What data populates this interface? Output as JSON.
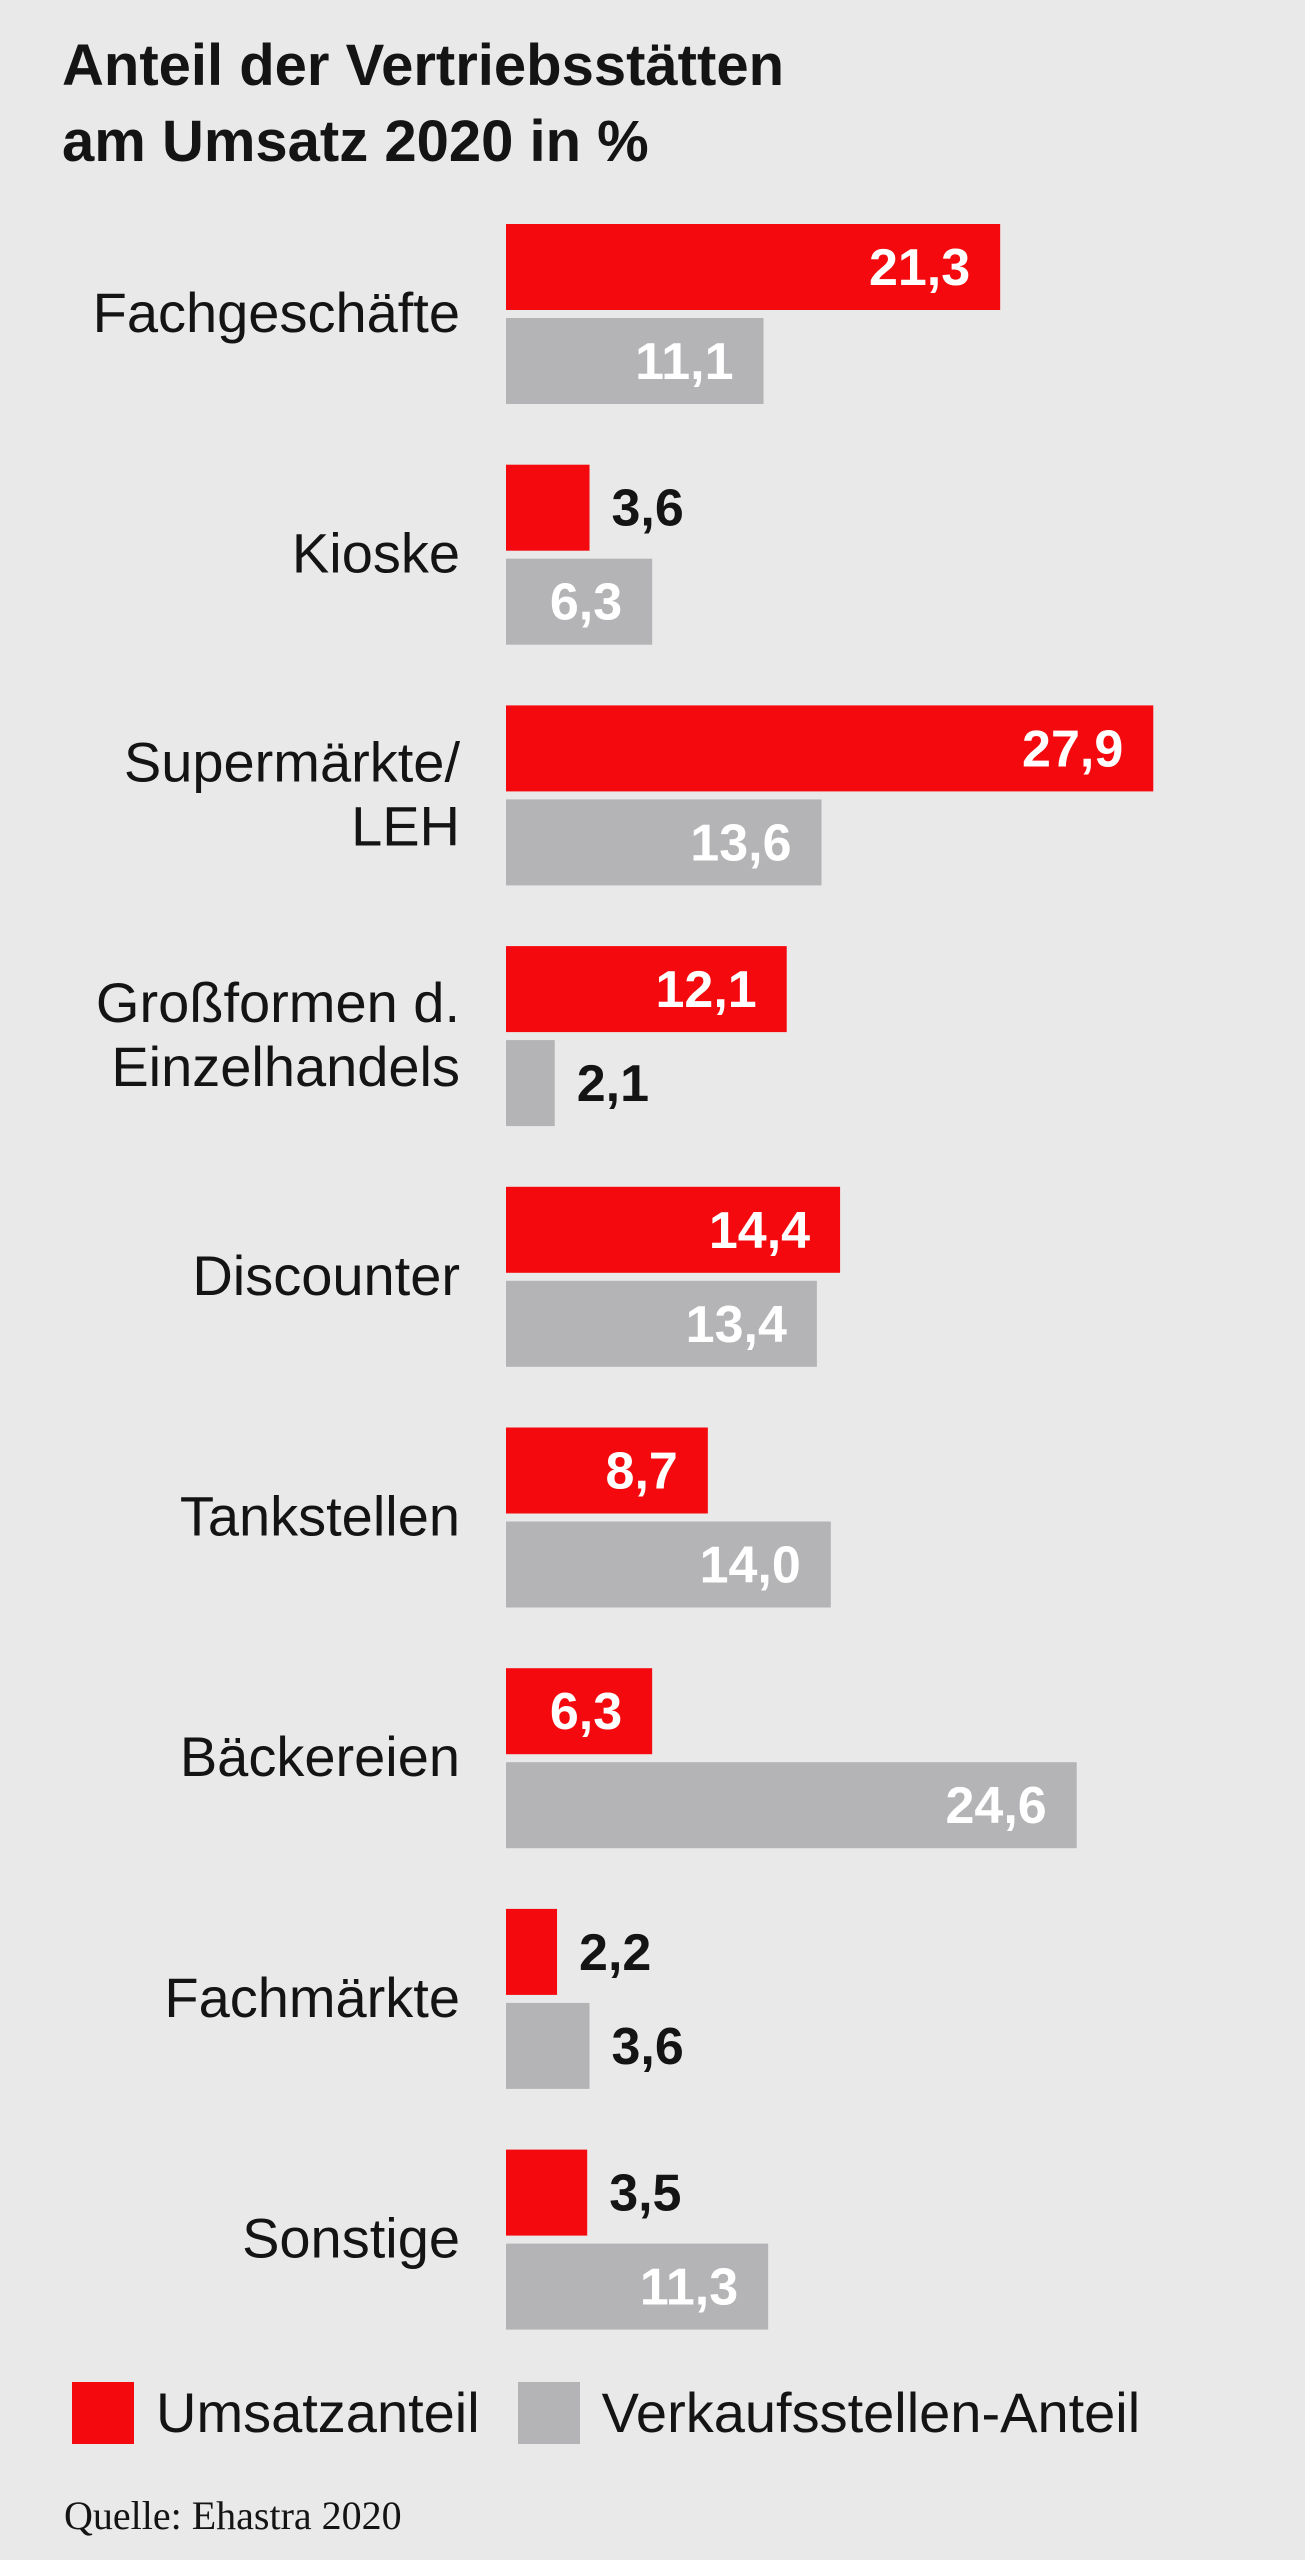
{
  "title": {
    "line1": "Anteil der Vertriebsstätten",
    "line2": "am Umsatz 2020 in %"
  },
  "legend": {
    "umsatz": "Umsatzanteil",
    "verkauf": "Verkaufsstellen-Anteil"
  },
  "source": "Quelle: Ehastra 2020",
  "colors": {
    "umsatz": "#f40a0e",
    "verkauf": "#b4b4b7",
    "background": "#e9e9e9"
  },
  "chart_data": {
    "type": "bar",
    "orientation": "horizontal",
    "title": "Anteil der Vertriebsstätten am Umsatz 2020 in %",
    "categories": [
      [
        "Fachgeschäfte"
      ],
      [
        "Kioske"
      ],
      [
        "Supermärkte/",
        "LEH"
      ],
      [
        "Großformen d.",
        "Einzelhandels"
      ],
      [
        "Discounter"
      ],
      [
        "Tankstellen"
      ],
      [
        "Bäckereien"
      ],
      [
        "Fachmärkte"
      ],
      [
        "Sonstige"
      ]
    ],
    "series": [
      {
        "name": "Umsatzanteil",
        "color": "#f40a0e",
        "values": [
          21.3,
          3.6,
          27.9,
          12.1,
          14.4,
          8.7,
          6.3,
          2.2,
          3.5
        ],
        "labels": [
          "21,3",
          "3,6",
          "27,9",
          "12,1",
          "14,4",
          "8,7",
          "6,3",
          "2,2",
          "3,5"
        ]
      },
      {
        "name": "Verkaufsstellen-Anteil",
        "color": "#b4b4b7",
        "values": [
          11.1,
          6.3,
          13.6,
          2.1,
          13.4,
          14.0,
          24.6,
          3.6,
          11.3
        ],
        "labels": [
          "11,1",
          "6,3",
          "13,6",
          "2,1",
          "13,4",
          "14,0",
          "24,6",
          "3,6",
          "11,3"
        ]
      }
    ],
    "xlim": [
      0,
      30
    ],
    "xlabel": "",
    "ylabel": "",
    "grid": false,
    "legend_position": "bottom"
  }
}
